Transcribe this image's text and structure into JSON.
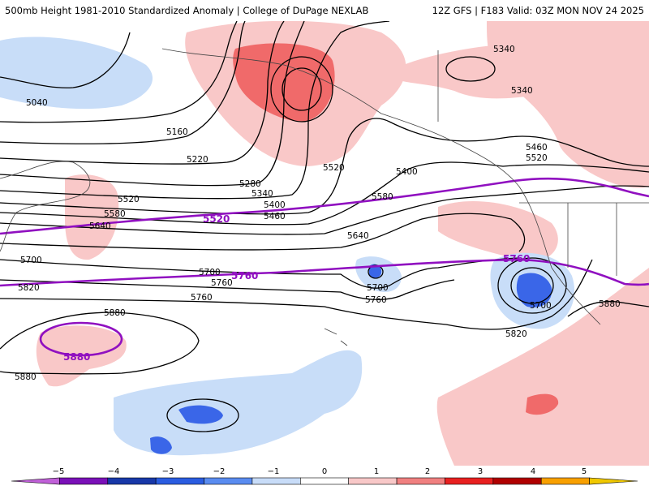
{
  "header": {
    "left_title": "500mb Height 1981-2010 Standardized Anomaly | College of DuPage NEXLAB",
    "right_title": "12Z GFS | F183 Valid: 03Z MON NOV 24 2025"
  },
  "contour_labels": [
    "5040",
    "5160",
    "5220",
    "5280",
    "5340",
    "5400",
    "5460",
    "5520",
    "5580",
    "5640",
    "5700",
    "5760",
    "5820",
    "5880",
    "5340",
    "5340",
    "5520",
    "5400",
    "5460",
    "5520",
    "5580",
    "5640",
    "5700",
    "5760",
    "5820",
    "5700",
    "5760",
    "5700",
    "5880",
    "5880"
  ],
  "highlight_labels": [
    "5520",
    "5760",
    "5760",
    "5880"
  ],
  "colorbar": {
    "ticks": [
      "−5",
      "−4",
      "−3",
      "−2",
      "−1",
      "0",
      "1",
      "2",
      "3",
      "4",
      "5"
    ],
    "colors": [
      "#c060d8",
      "#7a10b8",
      "#1838a8",
      "#2a5ce0",
      "#5a8cf0",
      "#c8dcf8",
      "#ffffff",
      "#f8c8c8",
      "#f08080",
      "#e82020",
      "#b00000",
      "#f8a000",
      "#f0c800"
    ]
  },
  "shading_colors": {
    "light_red": "#f9c8c8",
    "red": "#f06a6a",
    "light_blue": "#c8ddf8",
    "blue": "#3a66e8",
    "purple_line": "#9010c0"
  }
}
